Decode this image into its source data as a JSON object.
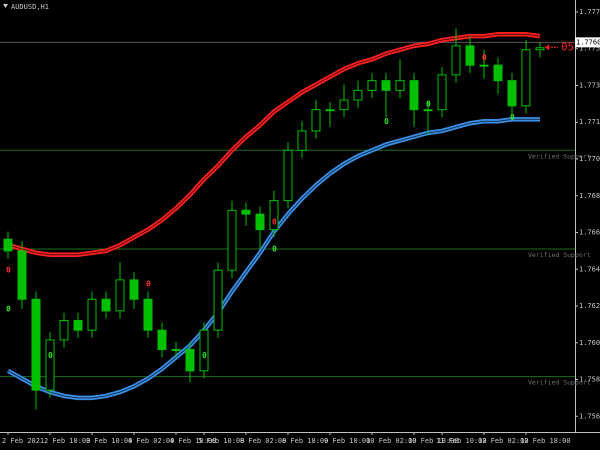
{
  "chart_data": {
    "type": "candlestick",
    "symbol": "AUDUSD,H1",
    "categories": [
      "2 Feb 2021",
      null,
      null,
      "2 Feb 18:00",
      null,
      null,
      "3 Feb 10:00",
      null,
      null,
      "4 Feb 02:00",
      null,
      null,
      "4 Feb 18:00",
      null,
      "5 Feb 10:00",
      null,
      null,
      "8 Feb 02:00",
      null,
      null,
      "8 Feb 18:00",
      null,
      null,
      "9 Feb 10:00",
      null,
      null,
      "10 Feb 02:00",
      null,
      null,
      "10 Feb 18:00",
      null,
      "11 Feb 10:00",
      null,
      null,
      "12 Feb 02:00",
      null,
      null,
      "12 Feb 18:00",
      null
    ],
    "open": [
      1.7659,
      1.7653,
      1.7628,
      1.7581,
      1.7607,
      1.7617,
      1.7612,
      1.7628,
      1.7622,
      1.7638,
      1.7628,
      1.7612,
      1.7602,
      1.7602,
      1.7591,
      1.7612,
      1.7643,
      1.7674,
      1.7672,
      1.7664,
      1.7679,
      1.7705,
      1.7715,
      1.7726,
      1.7726,
      1.7731,
      1.7736,
      1.7741,
      1.7736,
      1.7741,
      1.7726,
      1.7726,
      1.7744,
      1.7759,
      1.7749,
      1.7749,
      1.7741,
      1.7728,
      1.7757
    ],
    "high": [
      1.7663,
      1.7658,
      1.7632,
      1.7611,
      1.7621,
      1.7621,
      1.7632,
      1.7632,
      1.7647,
      1.7642,
      1.7632,
      1.7616,
      1.7606,
      1.7606,
      1.7616,
      1.7647,
      1.7679,
      1.7678,
      1.7676,
      1.7684,
      1.7709,
      1.772,
      1.7731,
      1.773,
      1.7739,
      1.7741,
      1.7745,
      1.7745,
      1.7752,
      1.7745,
      1.773,
      1.7748,
      1.7768,
      1.7764,
      1.7757,
      1.7753,
      1.7745,
      1.7762,
      1.7761
    ],
    "low": [
      1.7649,
      1.7623,
      1.7571,
      1.7577,
      1.7603,
      1.7608,
      1.7608,
      1.7618,
      1.7618,
      1.7623,
      1.7608,
      1.7598,
      1.7598,
      1.7585,
      1.7587,
      1.7608,
      1.7639,
      1.7666,
      1.7654,
      1.766,
      1.7675,
      1.7701,
      1.7711,
      1.7717,
      1.7722,
      1.7727,
      1.7732,
      1.7722,
      1.7732,
      1.7717,
      1.7713,
      1.7722,
      1.774,
      1.7745,
      1.7742,
      1.7734,
      1.7722,
      1.7724,
      1.7753
    ],
    "close": [
      1.7653,
      1.7628,
      1.7581,
      1.7607,
      1.7617,
      1.7612,
      1.7628,
      1.7622,
      1.7638,
      1.7628,
      1.7612,
      1.7602,
      1.7602,
      1.7591,
      1.7612,
      1.7643,
      1.7674,
      1.7672,
      1.7664,
      1.7679,
      1.7705,
      1.7715,
      1.7726,
      1.7726,
      1.7731,
      1.7736,
      1.7741,
      1.7736,
      1.7741,
      1.7726,
      1.7726,
      1.7744,
      1.7759,
      1.7749,
      1.7749,
      1.7741,
      1.7728,
      1.7757,
      1.7758
    ],
    "up_fill": "#000000",
    "down_fill": "#00c000",
    "candle_color": "#00c000",
    "bands": [
      {
        "color": "#ff2020",
        "values": [
          1.7656,
          1.7654,
          1.7652,
          1.7651,
          1.7651,
          1.7651,
          1.7652,
          1.7653,
          1.7656,
          1.766,
          1.7664,
          1.7669,
          1.7675,
          1.7682,
          1.769,
          1.7697,
          1.7705,
          1.7712,
          1.7718,
          1.7725,
          1.773,
          1.7735,
          1.7739,
          1.7743,
          1.7747,
          1.775,
          1.7752,
          1.7755,
          1.7757,
          1.7759,
          1.776,
          1.7762,
          1.7763,
          1.7764,
          1.7764,
          1.7765,
          1.7765,
          1.7765,
          1.7764
        ]
      },
      {
        "color": "#3a8ee6",
        "values": [
          1.7591,
          1.7587,
          1.7583,
          1.758,
          1.7578,
          1.7577,
          1.7577,
          1.7578,
          1.758,
          1.7583,
          1.7587,
          1.7592,
          1.7598,
          1.7604,
          1.7612,
          1.7621,
          1.7632,
          1.7642,
          1.7652,
          1.7663,
          1.7672,
          1.768,
          1.7687,
          1.7693,
          1.7698,
          1.7702,
          1.7705,
          1.7708,
          1.771,
          1.7712,
          1.7714,
          1.7715,
          1.7717,
          1.7719,
          1.772,
          1.772,
          1.7721,
          1.7721,
          1.7721
        ]
      }
    ],
    "levels": [
      {
        "value": 1.7705,
        "label": "Verified Support"
      },
      {
        "value": 1.7654,
        "label": "Verified Support"
      },
      {
        "value": 1.7588,
        "label": "Verified Support"
      }
    ],
    "level_color": "#1f6b1f",
    "signals": [
      {
        "index": 0,
        "price": 1.7643,
        "label": "0",
        "color": "#ff3030"
      },
      {
        "index": 10,
        "price": 1.7636,
        "label": "0",
        "color": "#ff3030"
      },
      {
        "index": 19,
        "price": 1.7668,
        "label": "0",
        "color": "#ff3030"
      },
      {
        "index": 34,
        "price": 1.7753,
        "label": "0",
        "color": "#ff3030"
      },
      {
        "index": 0,
        "price": 1.7623,
        "label": "0",
        "color": "#30e030"
      },
      {
        "index": 3,
        "price": 1.7599,
        "label": "0",
        "color": "#30e030"
      },
      {
        "index": 14,
        "price": 1.7599,
        "label": "0",
        "color": "#30e030"
      },
      {
        "index": 19,
        "price": 1.7654,
        "label": "0",
        "color": "#30e030"
      },
      {
        "index": 27,
        "price": 1.772,
        "label": "0",
        "color": "#30e030"
      },
      {
        "index": 30,
        "price": 1.7729,
        "label": "0",
        "color": "#30e030"
      },
      {
        "index": 36,
        "price": 1.7722,
        "label": "0",
        "color": "#30e030"
      }
    ],
    "current_price": 1.77608,
    "annotation": "05",
    "ylim": [
      1.75604,
      1.77827
    ],
    "yticks": [
      1.77765,
      1.77575,
      1.77385,
      1.77195,
      1.77005,
      1.76815,
      1.76625,
      1.76435,
      1.76245,
      1.76055,
      1.75865,
      1.75675
    ]
  }
}
